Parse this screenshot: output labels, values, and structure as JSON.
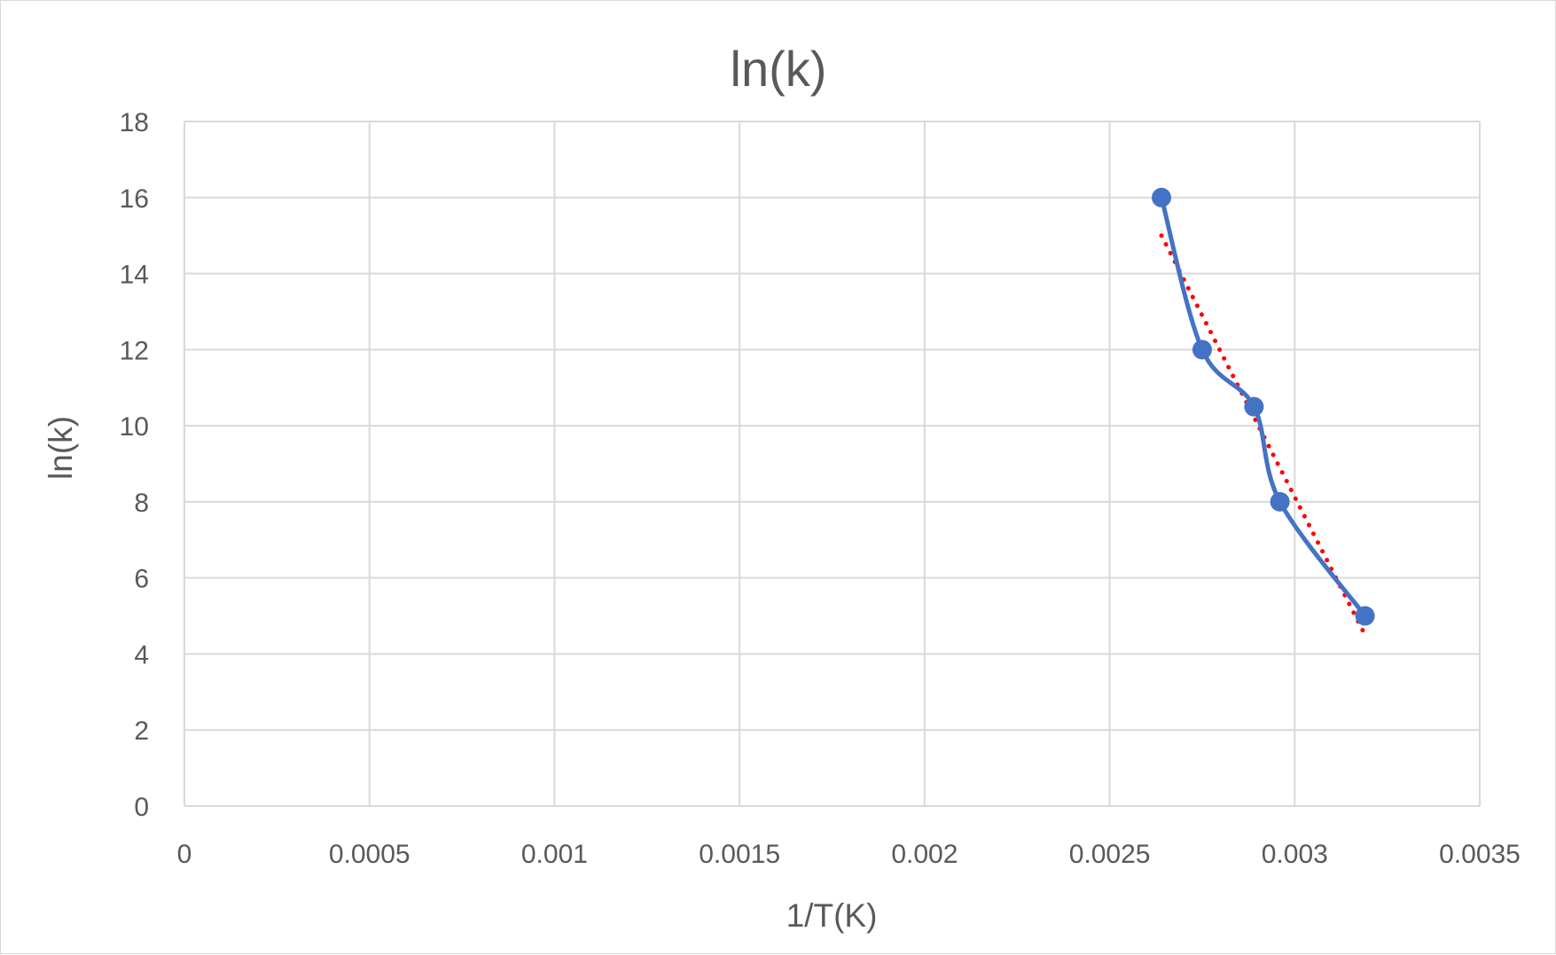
{
  "chart_data": {
    "type": "scatter",
    "title": "ln(k)",
    "xlabel": "1/T(K)",
    "ylabel": "ln(k)",
    "xlim": [
      0,
      0.0035
    ],
    "ylim": [
      0,
      18
    ],
    "x_ticks": [
      "0",
      "0.0005",
      "0.001",
      "0.0015",
      "0.002",
      "0.0025",
      "0.003",
      "0.0035"
    ],
    "y_ticks": [
      "0",
      "2",
      "4",
      "6",
      "8",
      "10",
      "12",
      "14",
      "16",
      "18"
    ],
    "grid": true,
    "legend": "none",
    "series": [
      {
        "line_style": "smooth",
        "markers": true,
        "color": "#4472C4",
        "points": [
          {
            "x": 0.00264,
            "y": 16
          },
          {
            "x": 0.00275,
            "y": 12
          },
          {
            "x": 0.00289,
            "y": 10.5
          },
          {
            "x": 0.00296,
            "y": 8
          },
          {
            "x": 0.00319,
            "y": 5
          }
        ]
      }
    ],
    "trendline": {
      "type": "linear",
      "style": "dotted",
      "color": "#FF0000",
      "start": {
        "x": 0.00264,
        "y": 15
      },
      "end": {
        "x": 0.00319,
        "y": 4.5
      }
    }
  }
}
